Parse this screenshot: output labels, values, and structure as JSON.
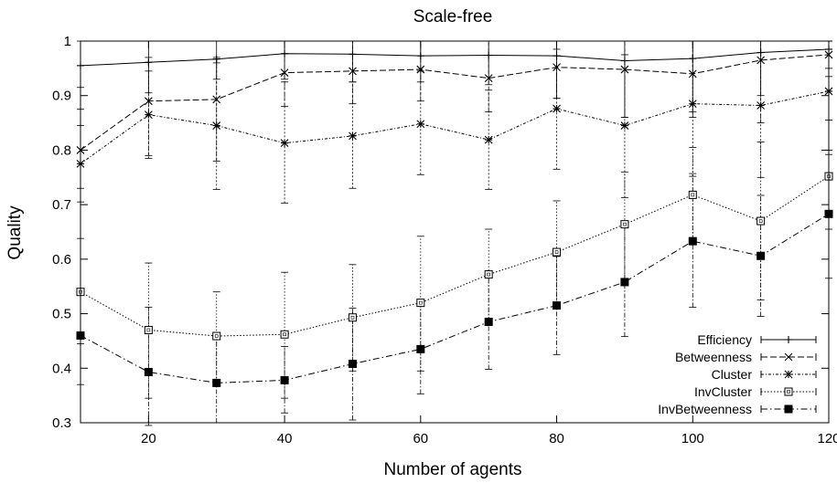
{
  "chart_data": {
    "type": "line",
    "title": "Scale-free",
    "xlabel": "Number of agents",
    "ylabel": "Quality",
    "xlim": [
      10,
      120
    ],
    "ylim": [
      0.3,
      1.0
    ],
    "xticks": [
      20,
      40,
      60,
      80,
      100,
      120
    ],
    "yticks": [
      0.3,
      0.4,
      0.5,
      0.6,
      0.7,
      0.8,
      0.9,
      1.0
    ],
    "ytick_labels": [
      "0.3",
      "0.4",
      "0.5",
      "0.6",
      "0.7",
      "0.8",
      "0.9",
      "1"
    ],
    "grid": false,
    "legend_position": "bottom-right",
    "x": [
      10,
      20,
      30,
      40,
      50,
      60,
      70,
      80,
      90,
      100,
      110,
      120
    ],
    "series": [
      {
        "name": "Efficiency",
        "dash": "solid",
        "marker": "plus",
        "values": [
          0.955,
          0.961,
          0.967,
          0.977,
          0.976,
          0.973,
          0.974,
          0.973,
          0.964,
          0.968,
          0.979,
          0.985
        ],
        "err_low": [
          0.915,
          0.905,
          0.93,
          0.93,
          0.925,
          0.925,
          0.92,
          0.895,
          0.86,
          0.86,
          0.9,
          0.935
        ],
        "err_high": [
          1.0,
          1.0,
          1.0,
          1.0,
          1.0,
          1.0,
          1.0,
          1.0,
          1.0,
          1.0,
          1.0,
          1.0
        ]
      },
      {
        "name": "Betweenness",
        "dash": "dashed",
        "marker": "x",
        "values": [
          0.8,
          0.89,
          0.893,
          0.942,
          0.945,
          0.948,
          0.932,
          0.952,
          0.948,
          0.94,
          0.965,
          0.975
        ],
        "err_low": [
          0.73,
          0.79,
          0.78,
          0.88,
          0.885,
          0.89,
          0.87,
          0.895,
          0.86,
          0.87,
          0.85,
          0.95
        ],
        "err_high": [
          0.875,
          0.97,
          0.97,
          1.0,
          1.0,
          1.0,
          1.0,
          1.0,
          1.0,
          1.0,
          1.0,
          1.0
        ]
      },
      {
        "name": "Cluster",
        "dash": "dotted-dash",
        "marker": "star",
        "values": [
          0.775,
          0.865,
          0.845,
          0.813,
          0.826,
          0.848,
          0.819,
          0.876,
          0.845,
          0.885,
          0.882,
          0.908
        ],
        "err_low": [
          0.705,
          0.785,
          0.728,
          0.703,
          0.73,
          0.755,
          0.728,
          0.765,
          0.713,
          0.752,
          0.75,
          0.792
        ],
        "err_high": [
          0.845,
          0.945,
          0.96,
          0.925,
          0.925,
          0.945,
          0.91,
          0.985,
          0.975,
          1.0,
          1.0,
          1.0
        ]
      },
      {
        "name": "InvCluster",
        "dash": "dotted",
        "marker": "open-square",
        "values": [
          0.54,
          0.47,
          0.459,
          0.462,
          0.493,
          0.52,
          0.572,
          0.613,
          0.664,
          0.718,
          0.67,
          0.752
        ],
        "err_low": [
          0.445,
          0.345,
          0.375,
          0.345,
          0.395,
          0.395,
          0.485,
          0.515,
          0.555,
          0.63,
          0.525,
          0.655
        ],
        "err_high": [
          0.638,
          0.593,
          0.54,
          0.576,
          0.59,
          0.642,
          0.655,
          0.707,
          0.76,
          0.805,
          0.815,
          0.855
        ]
      },
      {
        "name": "InvBetweenness",
        "dash": "dash-dot",
        "marker": "filled-square",
        "values": [
          0.46,
          0.393,
          0.373,
          0.378,
          0.408,
          0.435,
          0.485,
          0.515,
          0.558,
          0.633,
          0.606,
          0.683
        ],
        "err_low": [
          0.37,
          0.295,
          0.3,
          0.318,
          0.305,
          0.353,
          0.398,
          0.425,
          0.458,
          0.512,
          0.495,
          0.565
        ],
        "err_high": [
          0.545,
          0.512,
          0.465,
          0.44,
          0.51,
          0.518,
          0.572,
          0.605,
          0.658,
          0.757,
          0.717,
          0.8
        ]
      }
    ]
  }
}
